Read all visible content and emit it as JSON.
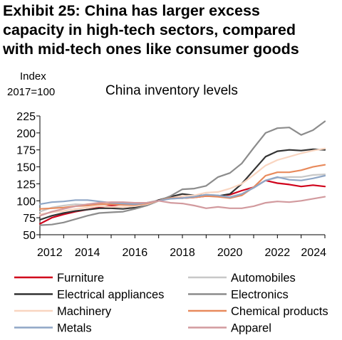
{
  "headline": [
    "Exhibit 25: China has larger excess",
    "capacity in high-tech sectors, compared",
    "with mid-tech ones like consumer goods"
  ],
  "chart_data": {
    "type": "line",
    "title": "China inventory levels",
    "ylabel_lines": [
      "Index",
      "2017=100"
    ],
    "xlim": [
      2012,
      2024
    ],
    "ylim": [
      50,
      225
    ],
    "yticks": [
      50,
      75,
      100,
      125,
      150,
      175,
      200,
      225
    ],
    "xticks": [
      2012,
      2014,
      2016,
      2018,
      2020,
      2022,
      2024
    ],
    "grid": false,
    "legend_position": "bottom",
    "x": [
      2012.0,
      2012.5,
      2013.0,
      2013.5,
      2014.0,
      2014.5,
      2015.0,
      2015.5,
      2016.0,
      2016.5,
      2017.0,
      2017.5,
      2018.0,
      2018.5,
      2019.0,
      2019.5,
      2020.0,
      2020.5,
      2021.0,
      2021.5,
      2022.0,
      2022.5,
      2023.0,
      2023.5,
      2024.0
    ],
    "series": [
      {
        "name": "Furniture",
        "color": "#d0021b",
        "width": 2.2,
        "values": [
          66,
          75,
          80,
          84,
          87,
          90,
          93,
          95,
          95,
          96,
          101,
          105,
          104,
          105,
          107,
          107,
          109,
          115,
          120,
          130,
          126,
          124,
          121,
          123,
          121
        ]
      },
      {
        "name": "Automobiles",
        "color": "#c8c8c8",
        "width": 2.2,
        "values": [
          84,
          90,
          93,
          95,
          94,
          95,
          95,
          96,
          96,
          97,
          101,
          103,
          104,
          106,
          109,
          108,
          106,
          110,
          120,
          130,
          134,
          135,
          135,
          138,
          139
        ]
      },
      {
        "name": "Electrical appliances",
        "color": "#333333",
        "width": 2.2,
        "values": [
          72,
          78,
          82,
          85,
          87,
          89,
          89,
          88,
          90,
          94,
          101,
          106,
          110,
          108,
          108,
          107,
          110,
          125,
          145,
          165,
          173,
          175,
          174,
          176,
          175
        ]
      },
      {
        "name": "Electronics",
        "color": "#8c8c8c",
        "width": 2.2,
        "values": [
          64,
          65,
          68,
          73,
          78,
          82,
          83,
          84,
          88,
          93,
          100,
          107,
          117,
          118,
          122,
          135,
          141,
          155,
          178,
          200,
          207,
          208,
          197,
          204,
          217
        ]
      },
      {
        "name": "Machinery",
        "color": "#f9d5c0",
        "width": 2.2,
        "values": [
          80,
          83,
          85,
          88,
          90,
          92,
          91,
          91,
          92,
          95,
          100,
          104,
          107,
          108,
          112,
          113,
          118,
          125,
          138,
          152,
          160,
          165,
          170,
          174,
          177
        ]
      },
      {
        "name": "Chemical products",
        "color": "#e88a5c",
        "width": 2.2,
        "values": [
          88,
          89,
          90,
          92,
          93,
          95,
          95,
          94,
          94,
          96,
          100,
          104,
          104,
          105,
          107,
          106,
          104,
          108,
          120,
          137,
          142,
          142,
          145,
          150,
          153
        ]
      },
      {
        "name": "Metals",
        "color": "#8fa6c6",
        "width": 2.2,
        "values": [
          95,
          98,
          99,
          101,
          101,
          99,
          97,
          96,
          95,
          97,
          100,
          103,
          104,
          106,
          109,
          108,
          105,
          110,
          119,
          130,
          135,
          131,
          130,
          133,
          137
        ]
      },
      {
        "name": "Apparel",
        "color": "#d29a9e",
        "width": 2.2,
        "values": [
          78,
          84,
          88,
          92,
          95,
          97,
          98,
          98,
          97,
          97,
          100,
          97,
          96,
          93,
          89,
          91,
          89,
          89,
          92,
          97,
          99,
          98,
          100,
          103,
          106
        ]
      }
    ]
  }
}
